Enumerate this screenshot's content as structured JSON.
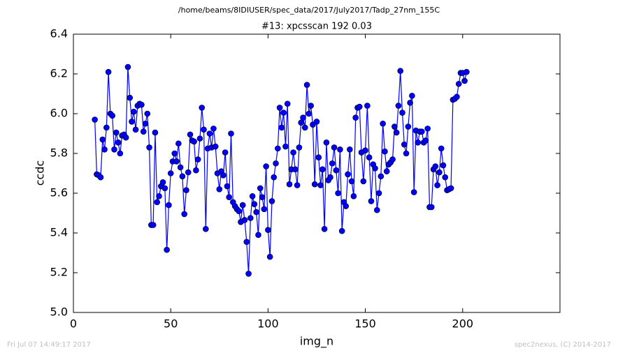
{
  "chart_data": {
    "type": "line",
    "suptitle": "/home/beams/8IDIUSER/spec_data/2017/July2017/Tadp_27nm_155C",
    "title": "#13: xpcsscan 192 0.03",
    "xlabel": "img_n",
    "ylabel": "ccdc",
    "footer_left": "Fri Jul 07 14:49:17 2017",
    "footer_right": "spec2nexus, (C) 2014-2017",
    "xlim": [
      0,
      250
    ],
    "xticks": [
      0,
      50,
      100,
      150,
      200
    ],
    "ylim": [
      5.0,
      6.4
    ],
    "yticks": [
      {
        "value": 5.0,
        "label": "5.0"
      },
      5.2,
      5.4,
      5.6,
      5.8,
      {
        "value": 6.0,
        "label": "6.0"
      },
      6.2,
      6.4
    ],
    "series": [
      {
        "color": "#0000ff",
        "x": [
          11,
          12,
          13,
          14,
          15,
          16,
          17,
          18,
          19,
          20,
          21,
          22,
          23,
          24,
          25,
          26,
          27,
          28,
          29,
          30,
          31,
          32,
          33,
          34,
          35,
          36,
          37,
          38,
          39,
          40,
          41,
          42,
          43,
          44,
          45,
          46,
          47,
          48,
          49,
          50,
          51,
          52,
          53,
          54,
          55,
          56,
          57,
          58,
          59,
          60,
          61,
          62,
          63,
          64,
          65,
          66,
          67,
          68,
          69,
          70,
          71,
          72,
          73,
          74,
          75,
          76,
          77,
          78,
          79,
          80,
          81,
          82,
          83,
          84,
          85,
          86,
          87,
          88,
          89,
          90,
          91,
          92,
          93,
          94,
          95,
          96,
          97,
          98,
          99,
          100,
          101,
          102,
          103,
          104,
          105,
          106,
          107,
          108,
          109,
          110,
          111,
          112,
          113,
          114,
          115,
          116,
          117,
          118,
          119,
          120,
          121,
          122,
          123,
          124,
          125,
          126,
          127,
          128,
          129,
          130,
          131,
          132,
          133,
          134,
          135,
          136,
          137,
          138,
          139,
          140,
          141,
          142,
          143,
          144,
          145,
          146,
          147,
          148,
          149,
          150,
          151,
          152,
          153,
          154,
          155,
          156,
          157,
          158,
          159,
          160,
          161,
          162,
          163,
          164,
          165,
          166,
          167,
          168,
          169,
          170,
          171,
          172,
          173,
          174,
          175,
          176,
          177,
          178,
          179,
          180,
          181,
          182,
          183,
          184,
          185,
          186,
          187,
          188,
          189,
          190,
          191,
          192,
          193,
          194,
          195,
          196,
          197,
          198,
          199,
          200,
          201,
          202
        ],
        "values": [
          5.97,
          5.695,
          5.69,
          5.68,
          5.87,
          5.82,
          5.93,
          6.21,
          6.0,
          5.99,
          5.82,
          5.905,
          5.855,
          5.8,
          5.89,
          5.895,
          5.88,
          6.235,
          6.08,
          5.96,
          6.01,
          5.92,
          6.04,
          6.05,
          6.045,
          5.91,
          5.95,
          6.0,
          5.83,
          5.44,
          5.44,
          5.905,
          5.555,
          5.585,
          5.635,
          5.655,
          5.625,
          5.315,
          5.54,
          5.7,
          5.76,
          5.8,
          5.76,
          5.85,
          5.73,
          5.685,
          5.495,
          5.615,
          5.705,
          5.895,
          5.865,
          5.86,
          5.715,
          5.77,
          5.875,
          6.03,
          5.92,
          5.42,
          5.825,
          5.9,
          5.83,
          5.925,
          5.835,
          5.7,
          5.62,
          5.71,
          5.69,
          5.805,
          5.635,
          5.58,
          5.9,
          5.555,
          5.535,
          5.52,
          5.51,
          5.455,
          5.54,
          5.465,
          5.355,
          5.195,
          5.475,
          5.585,
          5.545,
          5.505,
          5.39,
          5.625,
          5.58,
          5.52,
          5.735,
          5.415,
          5.28,
          5.56,
          5.68,
          5.75,
          5.825,
          6.03,
          5.93,
          6.005,
          5.835,
          6.05,
          5.645,
          5.72,
          5.805,
          5.72,
          5.64,
          5.83,
          5.955,
          5.98,
          5.93,
          6.145,
          6.0,
          6.04,
          5.945,
          5.645,
          5.96,
          5.78,
          5.64,
          5.72,
          5.42,
          5.855,
          5.665,
          5.68,
          5.75,
          5.83,
          5.715,
          5.6,
          5.82,
          5.41,
          5.555,
          5.535,
          5.695,
          5.82,
          5.66,
          5.585,
          5.98,
          6.03,
          6.035,
          5.805,
          5.66,
          5.815,
          6.04,
          5.78,
          5.56,
          5.745,
          5.725,
          5.515,
          5.6,
          5.685,
          5.95,
          5.81,
          5.71,
          5.745,
          5.755,
          5.77,
          5.935,
          5.905,
          6.04,
          6.215,
          6.005,
          5.845,
          5.8,
          5.935,
          6.055,
          6.09,
          5.605,
          5.915,
          5.855,
          5.91,
          5.91,
          5.855,
          5.865,
          5.925,
          5.53,
          5.53,
          5.72,
          5.735,
          5.64,
          5.705,
          5.825,
          5.74,
          5.68,
          5.615,
          5.62,
          5.625,
          6.07,
          6.075,
          6.085,
          6.15,
          6.205,
          6.205,
          6.165,
          6.21
        ]
      }
    ]
  }
}
